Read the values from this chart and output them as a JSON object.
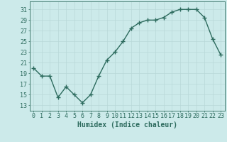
{
  "x": [
    0,
    1,
    2,
    3,
    4,
    5,
    6,
    7,
    8,
    9,
    10,
    11,
    12,
    13,
    14,
    15,
    16,
    17,
    18,
    19,
    20,
    21,
    22,
    23
  ],
  "y": [
    20,
    18.5,
    18.5,
    14.5,
    16.5,
    15,
    13.5,
    15,
    18.5,
    21.5,
    23,
    25,
    27.5,
    28.5,
    29,
    29,
    29.5,
    30.5,
    31,
    31,
    31,
    29.5,
    25.5,
    22.5
  ],
  "line_color": "#2d6b5e",
  "marker": "+",
  "marker_size": 4,
  "marker_lw": 1.0,
  "background_color": "#cceaea",
  "grid_color": "#b8d8d8",
  "xlabel": "Humidex (Indice chaleur)",
  "xlabel_fontsize": 7,
  "ylabel_ticks": [
    13,
    15,
    17,
    19,
    21,
    23,
    25,
    27,
    29,
    31
  ],
  "ylim": [
    12.0,
    32.5
  ],
  "xlim": [
    -0.5,
    23.5
  ],
  "xticks": [
    0,
    1,
    2,
    3,
    4,
    5,
    6,
    7,
    8,
    9,
    10,
    11,
    12,
    13,
    14,
    15,
    16,
    17,
    18,
    19,
    20,
    21,
    22,
    23
  ],
  "tick_color": "#2d6b5e",
  "tick_fontsize": 6,
  "line_width": 1.0
}
